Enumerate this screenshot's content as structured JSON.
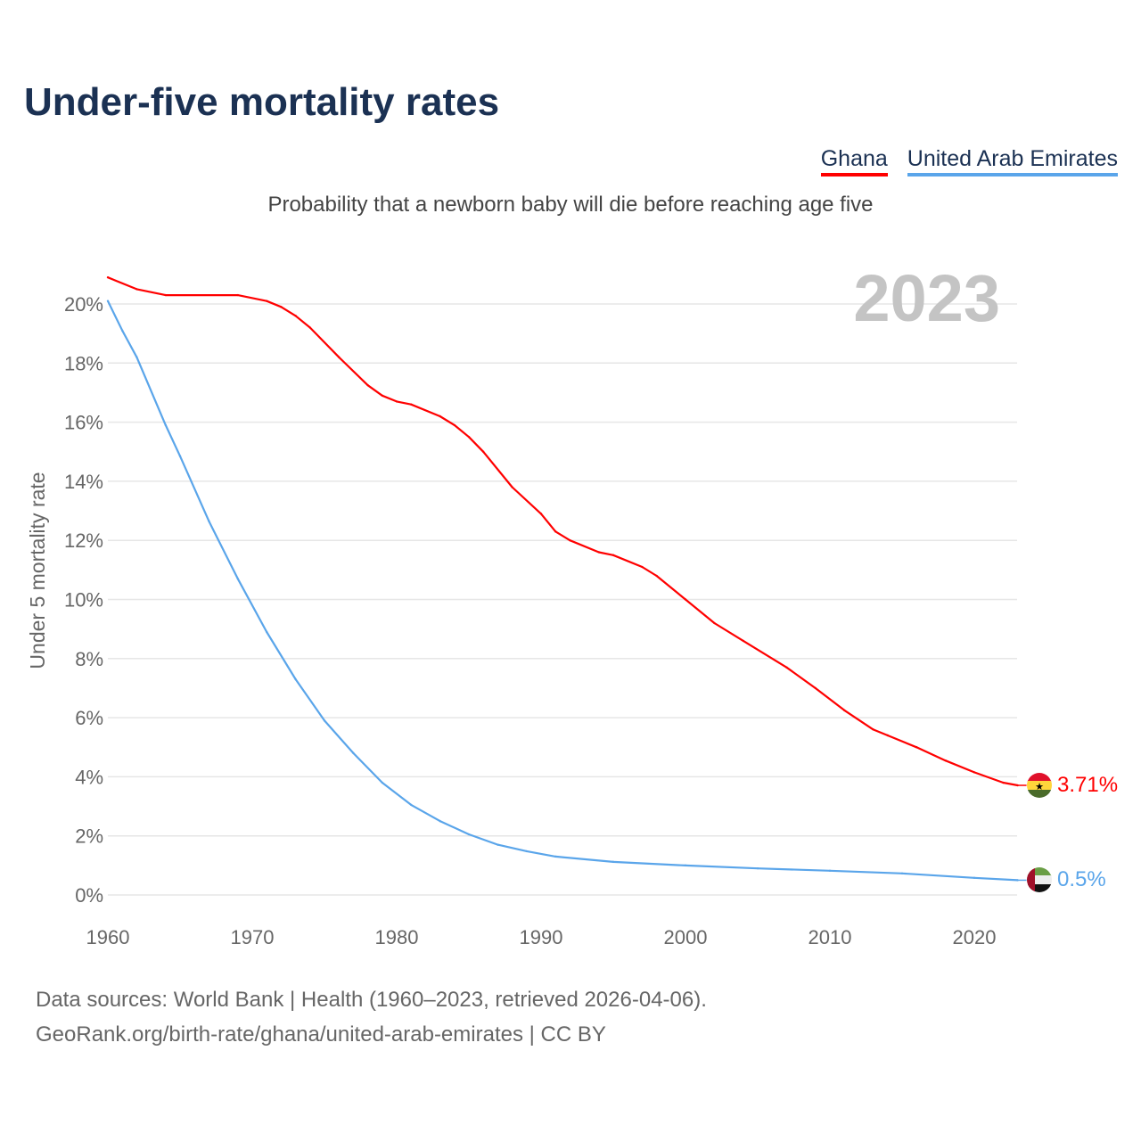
{
  "header": {
    "title": "Under-five mortality rates"
  },
  "legend": [
    {
      "label": "Ghana",
      "color": "#ff0000"
    },
    {
      "label": "United Arab Emirates",
      "color": "#5aa5ea"
    }
  ],
  "subtitle": "Probability that a newborn baby will die before reaching age five",
  "year_label": "2023",
  "footer": {
    "line1": "Data sources: World Bank | Health (1960–2023, retrieved 2026-04-06).",
    "line2": "GeoRank.org/birth-rate/ghana/united-arab-emirates | CC BY"
  },
  "chart_data": {
    "type": "line",
    "title": "Under-five mortality rates",
    "xlabel": "",
    "ylabel": "Under 5 mortality rate",
    "xlim": [
      1960,
      2023
    ],
    "ylim": [
      0,
      21
    ],
    "grid": true,
    "legend_position": "top-right",
    "x_ticks": [
      1960,
      1970,
      1980,
      1990,
      2000,
      2010,
      2020
    ],
    "x_tick_labels": [
      "1960",
      "1970",
      "1980",
      "1990",
      "2000",
      "2010",
      "2020"
    ],
    "y_ticks": [
      0,
      2,
      4,
      6,
      8,
      10,
      12,
      14,
      16,
      18,
      20
    ],
    "y_tick_labels": [
      "0%",
      "2%",
      "4%",
      "6%",
      "8%",
      "10%",
      "12%",
      "14%",
      "16%",
      "18%",
      "20%"
    ],
    "series": [
      {
        "name": "Ghana",
        "color": "#ff0000",
        "end_label": "3.71%",
        "flag": "ghana-flag",
        "x": [
          1960,
          1962,
          1964,
          1969,
          1971,
          1972,
          1973,
          1974,
          1976,
          1978,
          1979,
          1980,
          1981,
          1983,
          1984,
          1985,
          1986,
          1988,
          1990,
          1991,
          1992,
          1994,
          1995,
          1997,
          1998,
          2000,
          2002,
          2004,
          2007,
          2009,
          2011,
          2013,
          2014,
          2016,
          2018,
          2020,
          2022,
          2023
        ],
        "y": [
          20.9,
          20.5,
          20.3,
          20.3,
          20.1,
          19.9,
          19.6,
          19.2,
          18.2,
          17.25,
          16.9,
          16.7,
          16.6,
          16.2,
          15.9,
          15.5,
          15.0,
          13.8,
          12.9,
          12.3,
          12.0,
          11.6,
          11.5,
          11.1,
          10.8,
          10.0,
          9.2,
          8.6,
          7.7,
          7.0,
          6.25,
          5.6,
          5.4,
          5.0,
          4.55,
          4.15,
          3.8,
          3.71
        ]
      },
      {
        "name": "United Arab Emirates",
        "color": "#5aa5ea",
        "end_label": "0.5%",
        "flag": "uae-flag",
        "x": [
          1960,
          1961,
          1962,
          1964,
          1965,
          1967,
          1969,
          1971,
          1973,
          1975,
          1977,
          1979,
          1981,
          1983,
          1985,
          1987,
          1989,
          1991,
          1995,
          2000,
          2005,
          2010,
          2015,
          2020,
          2023
        ],
        "y": [
          20.1,
          19.1,
          18.2,
          15.9,
          14.85,
          12.65,
          10.7,
          8.9,
          7.3,
          5.9,
          4.8,
          3.8,
          3.05,
          2.5,
          2.05,
          1.7,
          1.48,
          1.3,
          1.12,
          1.0,
          0.9,
          0.82,
          0.73,
          0.58,
          0.5
        ]
      }
    ]
  }
}
